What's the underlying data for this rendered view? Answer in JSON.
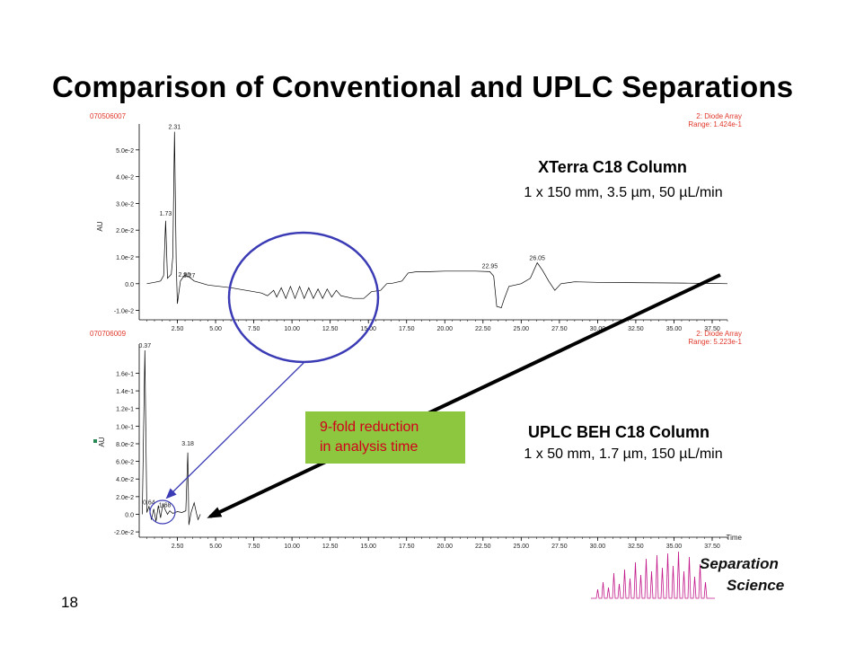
{
  "slide": {
    "title": "Comparison of Conventional and UPLC Separations",
    "page_number": "18",
    "logo_line1": "Separation",
    "logo_line2": "Science"
  },
  "chart_data": [
    {
      "type": "line",
      "id": "070506007",
      "detector": "2: Diode Array",
      "range_label": "Range: 1.424e-1",
      "ylabel": "AU",
      "xticks": [
        "2.50",
        "5.00",
        "7.50",
        "10.00",
        "12.50",
        "15.00",
        "17.50",
        "20.00",
        "22.50",
        "25.00",
        "27.50",
        "30.00",
        "32.50",
        "35.00",
        "37.50"
      ],
      "yticks": [
        "5.0e-2",
        "4.0e-2",
        "3.0e-2",
        "2.0e-2",
        "1.0e-2",
        "0.0",
        "-1.0e-2"
      ],
      "ylim": [
        -0.0135,
        0.058
      ],
      "xlim": [
        0,
        38.5
      ],
      "column_title": "XTerra C18 Column",
      "column_spec": "1 x 150 mm, 3.5 µm, 50 µL/min",
      "peak_labels": [
        {
          "x": 2.31,
          "y": 0.0568,
          "label": "2.31"
        },
        {
          "x": 1.73,
          "y": 0.0245,
          "label": "1.73"
        },
        {
          "x": 2.96,
          "y": 0.0016,
          "label": "2.96"
        },
        {
          "x": 3.27,
          "y": 0.0012,
          "label": "3.27"
        },
        {
          "x": 22.95,
          "y": 0.0048,
          "label": "22.95"
        },
        {
          "x": 26.05,
          "y": 0.0078,
          "label": "26.05"
        }
      ],
      "points": [
        [
          0.5,
          0.0
        ],
        [
          1.0,
          0.0005
        ],
        [
          1.4,
          0.001
        ],
        [
          1.6,
          0.003
        ],
        [
          1.73,
          0.0235
        ],
        [
          1.85,
          0.002
        ],
        [
          2.1,
          0.0035
        ],
        [
          2.2,
          0.01
        ],
        [
          2.31,
          0.0568
        ],
        [
          2.42,
          0.008
        ],
        [
          2.5,
          -0.0075
        ],
        [
          2.7,
          0.001
        ],
        [
          2.96,
          0.0032
        ],
        [
          3.27,
          0.0025
        ],
        [
          3.6,
          0.001
        ],
        [
          4.5,
          -0.0005
        ],
        [
          6.0,
          -0.0015
        ],
        [
          7.5,
          -0.003
        ],
        [
          8.0,
          -0.0035
        ],
        [
          8.4,
          -0.0045
        ],
        [
          8.8,
          -0.0025
        ],
        [
          9.0,
          -0.005
        ],
        [
          9.3,
          -0.0015
        ],
        [
          9.6,
          -0.0055
        ],
        [
          9.9,
          -0.001
        ],
        [
          10.2,
          -0.0055
        ],
        [
          10.5,
          -0.001
        ],
        [
          10.8,
          -0.0055
        ],
        [
          11.1,
          -0.0015
        ],
        [
          11.4,
          -0.0055
        ],
        [
          11.7,
          -0.002
        ],
        [
          12.0,
          -0.0055
        ],
        [
          12.3,
          -0.002
        ],
        [
          12.6,
          -0.005
        ],
        [
          12.9,
          -0.0025
        ],
        [
          13.2,
          -0.0045
        ],
        [
          14.0,
          -0.0055
        ],
        [
          14.7,
          -0.0055
        ],
        [
          15.2,
          -0.003
        ],
        [
          15.8,
          -0.0025
        ],
        [
          16.2,
          0.0
        ],
        [
          16.6,
          0.0002
        ],
        [
          17.2,
          0.001
        ],
        [
          17.6,
          0.004
        ],
        [
          18.2,
          0.0045
        ],
        [
          19.0,
          0.0045
        ],
        [
          20.0,
          0.0047
        ],
        [
          21.0,
          0.0047
        ],
        [
          22.0,
          0.0047
        ],
        [
          22.95,
          0.0045
        ],
        [
          23.2,
          0.0028
        ],
        [
          23.4,
          -0.0085
        ],
        [
          23.7,
          -0.009
        ],
        [
          23.9,
          -0.0055
        ],
        [
          24.2,
          -0.001
        ],
        [
          25.0,
          0.0
        ],
        [
          25.6,
          0.002
        ],
        [
          26.05,
          0.0078
        ],
        [
          26.4,
          0.005
        ],
        [
          26.8,
          0.001
        ],
        [
          27.2,
          -0.0025
        ],
        [
          27.6,
          0.0
        ],
        [
          28.5,
          0.0007
        ],
        [
          30.0,
          0.0005
        ],
        [
          32.0,
          0.0004
        ],
        [
          34.0,
          0.0003
        ],
        [
          36.0,
          0.0002
        ],
        [
          37.5,
          0.0001
        ],
        [
          38.5,
          0.0
        ]
      ]
    },
    {
      "type": "line",
      "id": "070706009",
      "detector": "2: Diode Array",
      "range_label": "Range: 5.223e-1",
      "ylabel": "AU",
      "xlabel": "Time",
      "xticks": [
        "2.50",
        "5.00",
        "7.50",
        "10.00",
        "12.50",
        "15.00",
        "17.50",
        "20.00",
        "22.50",
        "25.00",
        "27.50",
        "30.00",
        "32.50",
        "35.00",
        "37.50"
      ],
      "yticks": [
        "1.6e-1",
        "1.4e-1",
        "1.2e-1",
        "1.0e-1",
        "8.0e-2",
        "6.0e-2",
        "4.0e-2",
        "2.0e-2",
        "0.0",
        "-2.0e-2"
      ],
      "ylim": [
        -0.026,
        0.188
      ],
      "xlim": [
        0,
        38.5
      ],
      "column_title": "UPLC BEH C18 Column",
      "column_spec": "1 x 50 mm, 1.7 µm, 150 µL/min",
      "peak_labels": [
        {
          "x": 0.37,
          "y": 0.186,
          "label": "0.37"
        },
        {
          "x": 0.64,
          "y": 0.008,
          "label": "0.64"
        },
        {
          "x": 1.68,
          "y": 0.005,
          "label": "1.68"
        },
        {
          "x": 3.18,
          "y": 0.075,
          "label": "3.18"
        }
      ],
      "points": [
        [
          0.2,
          0.0
        ],
        [
          0.37,
          0.186
        ],
        [
          0.5,
          0.002
        ],
        [
          0.64,
          0.009
        ],
        [
          0.8,
          -0.006
        ],
        [
          0.95,
          0.006
        ],
        [
          1.1,
          -0.008
        ],
        [
          1.25,
          0.01
        ],
        [
          1.4,
          -0.004
        ],
        [
          1.55,
          0.012
        ],
        [
          1.68,
          0.006
        ],
        [
          1.85,
          0.0
        ],
        [
          2.0,
          0.004
        ],
        [
          2.2,
          0.001
        ],
        [
          2.5,
          0.003
        ],
        [
          2.8,
          0.002
        ],
        [
          3.05,
          0.004
        ],
        [
          3.18,
          0.07
        ],
        [
          3.25,
          -0.012
        ],
        [
          3.4,
          0.002
        ],
        [
          3.6,
          0.013
        ],
        [
          3.75,
          0.001
        ],
        [
          3.85,
          -0.006
        ],
        [
          4.0,
          0.0
        ]
      ]
    }
  ],
  "annotation": {
    "line1": "9-fold reduction",
    "line2": "in analysis time",
    "box_color": "#8dc63f",
    "text_color": "#d0021b"
  },
  "colors": {
    "trace": "#000000",
    "id_label": "#e0382b",
    "ellipse": "#3b3bb5",
    "arrow_blue": "#3b3bb5",
    "arrow_black": "#000000",
    "logo_trace": "#c2188a"
  }
}
